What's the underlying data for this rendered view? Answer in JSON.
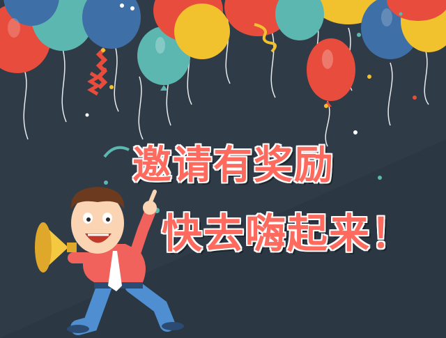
{
  "headline": {
    "line1": "邀请有奖励",
    "line2": "快去嗨起来！"
  },
  "colors": {
    "background": "#2f3c48",
    "headline_fill": "#ff6a5e",
    "headline_outline": "#ffffff",
    "balloon_red": "#e74c3c",
    "balloon_blue": "#3e6fa6",
    "balloon_yellow": "#f2c12e",
    "balloon_teal": "#5bb7b0",
    "balloon_orange": "#f08a24",
    "shirt": "#f0625b",
    "pants": "#4f8fd1",
    "megaphone": "#f5c842"
  },
  "icons": [
    "balloon-icon",
    "streamer-icon",
    "confetti-icon",
    "megaphone-icon",
    "cheering-man-illustration"
  ]
}
